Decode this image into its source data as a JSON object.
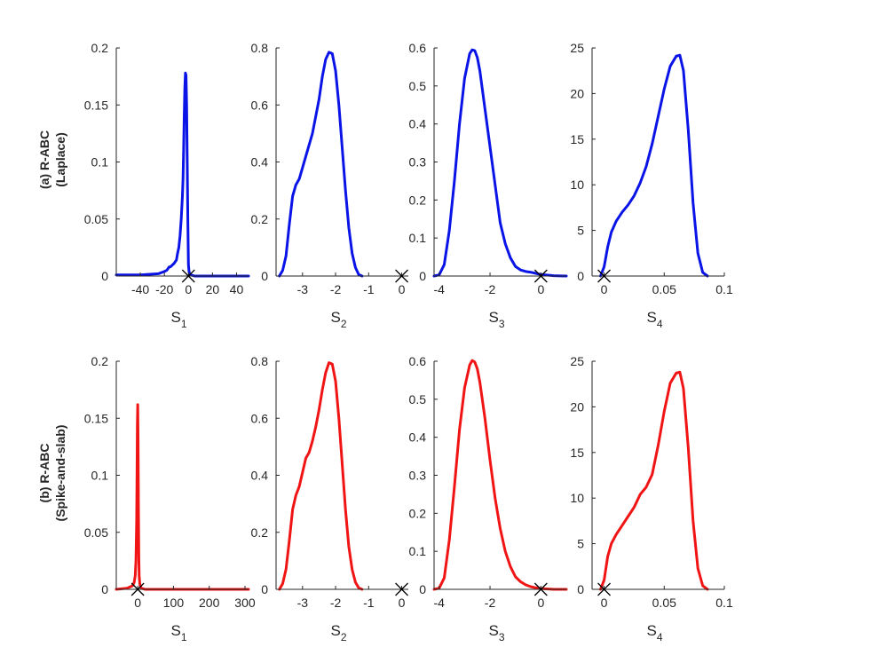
{
  "figure": {
    "rows": [
      {
        "label_line1": "(a) R-ABC",
        "label_line2": "(Laplace)",
        "color": "#0a14e6"
      },
      {
        "label_line1": "(b) R-ABC",
        "label_line2": "(Spike-and-slab)",
        "color": "#f01414"
      }
    ]
  },
  "chart_data": [
    {
      "type": "line",
      "row": 0,
      "col": 0,
      "xlabel": "S",
      "xlabel_sub": "1",
      "xlim": [
        -60,
        50
      ],
      "ylim": [
        0,
        0.2
      ],
      "xticks": [
        -40,
        -20,
        0,
        20,
        40
      ],
      "xtick_labels": [
        "-40",
        "-20",
        "0",
        "20",
        "40"
      ],
      "yticks": [
        0,
        0.05,
        0.1,
        0.15,
        0.2
      ],
      "ytick_labels": [
        "0",
        "0.05",
        "0.1",
        "0.15",
        "0.2"
      ],
      "marker": {
        "x": 0,
        "y": 0
      },
      "series": [
        {
          "color": "#0a14e6",
          "x": [
            -60,
            -40,
            -25,
            -20,
            -18,
            -16,
            -15,
            -13,
            -12,
            -10,
            -9,
            -8,
            -7,
            -6,
            -5,
            -4.5,
            -4,
            -3.5,
            -3,
            -2.5,
            -2,
            -1.5,
            -1,
            -0.5,
            0,
            0.5,
            1,
            2,
            5,
            10,
            20,
            30,
            40,
            50
          ],
          "y": [
            0.001,
            0.001,
            0.002,
            0.004,
            0.005,
            0.008,
            0.008,
            0.01,
            0.011,
            0.014,
            0.02,
            0.025,
            0.035,
            0.05,
            0.07,
            0.085,
            0.11,
            0.14,
            0.165,
            0.178,
            0.176,
            0.15,
            0.1,
            0.05,
            0.01,
            0.004,
            0.002,
            0.001,
            0.0,
            0.0,
            0.0,
            0.0,
            0.0,
            0.0
          ]
        }
      ]
    },
    {
      "type": "line",
      "row": 0,
      "col": 1,
      "xlabel": "S",
      "xlabel_sub": "2",
      "xlim": [
        -3.8,
        0.2
      ],
      "ylim": [
        0,
        0.8
      ],
      "xticks": [
        -3,
        -2,
        -1,
        0
      ],
      "xtick_labels": [
        "-3",
        "-2",
        "-1",
        "0"
      ],
      "yticks": [
        0,
        0.2,
        0.4,
        0.6,
        0.8
      ],
      "ytick_labels": [
        "0",
        "0.2",
        "0.4",
        "0.6",
        "0.8"
      ],
      "marker": {
        "x": 0,
        "y": 0
      },
      "series": [
        {
          "color": "#0a14e6",
          "x": [
            -3.7,
            -3.6,
            -3.5,
            -3.4,
            -3.3,
            -3.2,
            -3.1,
            -3.0,
            -2.9,
            -2.8,
            -2.7,
            -2.6,
            -2.5,
            -2.4,
            -2.3,
            -2.2,
            -2.1,
            -2.0,
            -1.9,
            -1.8,
            -1.7,
            -1.6,
            -1.5,
            -1.4,
            -1.3,
            -1.2
          ],
          "y": [
            0.0,
            0.02,
            0.07,
            0.18,
            0.28,
            0.32,
            0.34,
            0.38,
            0.42,
            0.46,
            0.5,
            0.56,
            0.62,
            0.7,
            0.76,
            0.785,
            0.78,
            0.72,
            0.6,
            0.45,
            0.3,
            0.17,
            0.08,
            0.03,
            0.005,
            0.0
          ]
        }
      ]
    },
    {
      "type": "line",
      "row": 0,
      "col": 2,
      "xlabel": "S",
      "xlabel_sub": "3",
      "xlim": [
        -4.2,
        1.0
      ],
      "ylim": [
        0,
        0.6
      ],
      "xticks": [
        -4,
        -2,
        0
      ],
      "xtick_labels": [
        "-4",
        "-2",
        "0"
      ],
      "yticks": [
        0,
        0.1,
        0.2,
        0.3,
        0.4,
        0.5,
        0.6
      ],
      "ytick_labels": [
        "0",
        "0.1",
        "0.2",
        "0.3",
        "0.4",
        "0.5",
        "0.6"
      ],
      "marker": {
        "x": 0,
        "y": 0
      },
      "series": [
        {
          "color": "#0a14e6",
          "x": [
            -4.2,
            -4.0,
            -3.8,
            -3.6,
            -3.4,
            -3.2,
            -3.0,
            -2.8,
            -2.7,
            -2.6,
            -2.5,
            -2.4,
            -2.2,
            -2.0,
            -1.8,
            -1.6,
            -1.4,
            -1.2,
            -1.0,
            -0.8,
            -0.6,
            -0.4,
            -0.2,
            0.0,
            0.5,
            1.0
          ],
          "y": [
            0.0,
            0.003,
            0.03,
            0.12,
            0.25,
            0.4,
            0.52,
            0.585,
            0.595,
            0.593,
            0.575,
            0.54,
            0.44,
            0.34,
            0.24,
            0.14,
            0.085,
            0.048,
            0.025,
            0.016,
            0.012,
            0.01,
            0.007,
            0.004,
            0.001,
            0.0
          ]
        }
      ]
    },
    {
      "type": "line",
      "row": 0,
      "col": 3,
      "xlabel": "S",
      "xlabel_sub": "4",
      "xlim": [
        -0.01,
        0.1
      ],
      "ylim": [
        0,
        25
      ],
      "xticks": [
        0,
        0.05,
        0.1
      ],
      "xtick_labels": [
        "0",
        "0.05",
        "0.1"
      ],
      "yticks": [
        0,
        5,
        10,
        15,
        20,
        25
      ],
      "ytick_labels": [
        "0",
        "5",
        "10",
        "15",
        "20",
        "25"
      ],
      "marker": {
        "x": 0,
        "y": 0
      },
      "series": [
        {
          "color": "#0a14e6",
          "x": [
            -0.003,
            0.0,
            0.003,
            0.006,
            0.01,
            0.015,
            0.02,
            0.025,
            0.03,
            0.035,
            0.04,
            0.045,
            0.05,
            0.055,
            0.06,
            0.063,
            0.066,
            0.07,
            0.074,
            0.078,
            0.082,
            0.086
          ],
          "y": [
            0.0,
            1.0,
            3.2,
            4.8,
            6.0,
            7.0,
            7.8,
            8.8,
            10.2,
            12.0,
            14.5,
            17.5,
            20.5,
            23.0,
            24.1,
            24.2,
            22.5,
            16.0,
            8.0,
            2.5,
            0.4,
            0.0
          ]
        }
      ]
    },
    {
      "type": "line",
      "row": 1,
      "col": 0,
      "xlabel": "S",
      "xlabel_sub": "1",
      "xlim": [
        -60,
        310
      ],
      "ylim": [
        0,
        0.2
      ],
      "xticks": [
        0,
        100,
        200,
        300
      ],
      "xtick_labels": [
        "0",
        "100",
        "200",
        "300"
      ],
      "yticks": [
        0,
        0.05,
        0.1,
        0.15,
        0.2
      ],
      "ytick_labels": [
        "0",
        "0.05",
        "0.1",
        "0.15",
        "0.2"
      ],
      "marker": {
        "x": 0,
        "y": 0
      },
      "series": [
        {
          "color": "#f01414",
          "x": [
            -60,
            -30,
            -15,
            -10,
            -7,
            -5,
            -3,
            -2,
            -1,
            0,
            1,
            2,
            3,
            4,
            6,
            10,
            20,
            50,
            100,
            200,
            310
          ],
          "y": [
            0.0,
            0.001,
            0.003,
            0.006,
            0.012,
            0.025,
            0.06,
            0.1,
            0.145,
            0.162,
            0.13,
            0.07,
            0.03,
            0.012,
            0.004,
            0.001,
            0.0,
            0.0,
            0.0,
            0.0,
            0.0
          ]
        }
      ]
    },
    {
      "type": "line",
      "row": 1,
      "col": 1,
      "xlabel": "S",
      "xlabel_sub": "2",
      "xlim": [
        -3.8,
        0.2
      ],
      "ylim": [
        0,
        0.8
      ],
      "xticks": [
        -3,
        -2,
        -1,
        0
      ],
      "xtick_labels": [
        "-3",
        "-2",
        "-1",
        "0"
      ],
      "yticks": [
        0,
        0.2,
        0.4,
        0.6,
        0.8
      ],
      "ytick_labels": [
        "0",
        "0.2",
        "0.4",
        "0.6",
        "0.8"
      ],
      "marker": {
        "x": 0,
        "y": 0
      },
      "series": [
        {
          "color": "#f01414",
          "x": [
            -3.7,
            -3.6,
            -3.5,
            -3.4,
            -3.3,
            -3.2,
            -3.1,
            -3.0,
            -2.9,
            -2.8,
            -2.7,
            -2.6,
            -2.5,
            -2.4,
            -2.3,
            -2.2,
            -2.1,
            -2.0,
            -1.9,
            -1.8,
            -1.7,
            -1.6,
            -1.5,
            -1.4,
            -1.3,
            -1.2
          ],
          "y": [
            0.0,
            0.02,
            0.07,
            0.17,
            0.28,
            0.33,
            0.36,
            0.41,
            0.46,
            0.48,
            0.52,
            0.57,
            0.63,
            0.7,
            0.76,
            0.795,
            0.79,
            0.73,
            0.6,
            0.44,
            0.28,
            0.15,
            0.07,
            0.025,
            0.005,
            0.0
          ]
        }
      ]
    },
    {
      "type": "line",
      "row": 1,
      "col": 2,
      "xlabel": "S",
      "xlabel_sub": "3",
      "xlim": [
        -4.2,
        1.0
      ],
      "ylim": [
        0,
        0.6
      ],
      "xticks": [
        -4,
        -2,
        0
      ],
      "xtick_labels": [
        "-4",
        "-2",
        "0"
      ],
      "yticks": [
        0,
        0.1,
        0.2,
        0.3,
        0.4,
        0.5,
        0.6
      ],
      "ytick_labels": [
        "0",
        "0.1",
        "0.2",
        "0.3",
        "0.4",
        "0.5",
        "0.6"
      ],
      "marker": {
        "x": 0,
        "y": 0
      },
      "series": [
        {
          "color": "#f01414",
          "x": [
            -4.2,
            -4.0,
            -3.8,
            -3.6,
            -3.4,
            -3.2,
            -3.0,
            -2.8,
            -2.7,
            -2.6,
            -2.5,
            -2.4,
            -2.2,
            -2.0,
            -1.8,
            -1.6,
            -1.4,
            -1.2,
            -1.0,
            -0.8,
            -0.6,
            -0.4,
            -0.2,
            0.0,
            0.5,
            1.0
          ],
          "y": [
            0.0,
            0.003,
            0.03,
            0.13,
            0.27,
            0.42,
            0.53,
            0.59,
            0.602,
            0.598,
            0.58,
            0.545,
            0.45,
            0.34,
            0.24,
            0.16,
            0.1,
            0.06,
            0.033,
            0.02,
            0.012,
            0.007,
            0.004,
            0.002,
            0.0,
            0.0
          ]
        }
      ]
    },
    {
      "type": "line",
      "row": 1,
      "col": 3,
      "xlabel": "S",
      "xlabel_sub": "4",
      "xlim": [
        -0.01,
        0.1
      ],
      "ylim": [
        0,
        25
      ],
      "xticks": [
        0,
        0.05,
        0.1
      ],
      "xtick_labels": [
        "0",
        "0.05",
        "0.1"
      ],
      "yticks": [
        0,
        5,
        10,
        15,
        20,
        25
      ],
      "ytick_labels": [
        "0",
        "5",
        "10",
        "15",
        "20",
        "25"
      ],
      "marker": {
        "x": 0,
        "y": 0
      },
      "series": [
        {
          "color": "#f01414",
          "x": [
            -0.003,
            0.0,
            0.003,
            0.006,
            0.01,
            0.015,
            0.02,
            0.025,
            0.03,
            0.035,
            0.04,
            0.045,
            0.05,
            0.055,
            0.06,
            0.063,
            0.066,
            0.07,
            0.074,
            0.078,
            0.082,
            0.086
          ],
          "y": [
            0.0,
            1.0,
            3.6,
            5.0,
            6.0,
            7.0,
            8.0,
            9.0,
            10.4,
            11.2,
            12.6,
            15.8,
            19.5,
            22.6,
            23.7,
            23.8,
            22.0,
            15.5,
            7.5,
            2.3,
            0.4,
            0.0
          ]
        }
      ]
    }
  ]
}
